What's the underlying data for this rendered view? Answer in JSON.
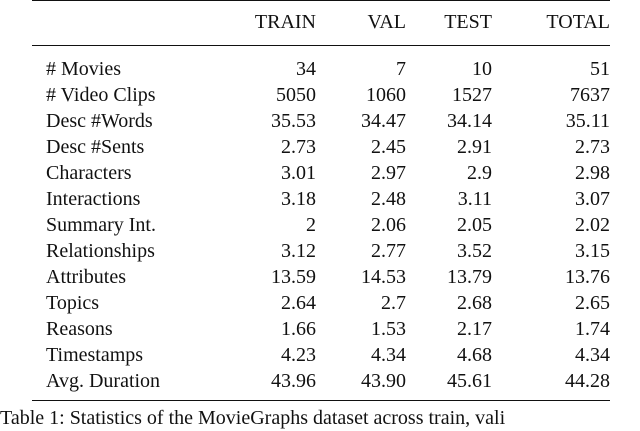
{
  "table": {
    "columns": [
      "",
      "TRAIN",
      "VAL",
      "TEST",
      "TOTAL"
    ],
    "rows": [
      {
        "label": "# Movies",
        "train": "34",
        "val": "7",
        "test": "10",
        "total": "51"
      },
      {
        "label": "# Video Clips",
        "train": "5050",
        "val": "1060",
        "test": "1527",
        "total": "7637"
      },
      {
        "label": "Desc #Words",
        "train": "35.53",
        "val": "34.47",
        "test": "34.14",
        "total": "35.11"
      },
      {
        "label": "Desc #Sents",
        "train": "2.73",
        "val": "2.45",
        "test": "2.91",
        "total": "2.73"
      },
      {
        "label": "Characters",
        "train": "3.01",
        "val": "2.97",
        "test": "2.9",
        "total": "2.98"
      },
      {
        "label": "Interactions",
        "train": "3.18",
        "val": "2.48",
        "test": "3.11",
        "total": "3.07"
      },
      {
        "label": "Summary Int.",
        "train": "2",
        "val": "2.06",
        "test": "2.05",
        "total": "2.02"
      },
      {
        "label": "Relationships",
        "train": "3.12",
        "val": "2.77",
        "test": "3.52",
        "total": "3.15"
      },
      {
        "label": "Attributes",
        "train": "13.59",
        "val": "14.53",
        "test": "13.79",
        "total": "13.76"
      },
      {
        "label": "Topics",
        "train": "2.64",
        "val": "2.7",
        "test": "2.68",
        "total": "2.65"
      },
      {
        "label": "Reasons",
        "train": "1.66",
        "val": "1.53",
        "test": "2.17",
        "total": "1.74"
      },
      {
        "label": "Timestamps",
        "train": "4.23",
        "val": "4.34",
        "test": "4.68",
        "total": "4.34"
      },
      {
        "label": "Avg. Duration",
        "train": "43.96",
        "val": "43.90",
        "test": "45.61",
        "total": "44.28"
      }
    ]
  },
  "caption": "Table 1: Statistics of the MovieGraphs dataset across train, vali"
}
